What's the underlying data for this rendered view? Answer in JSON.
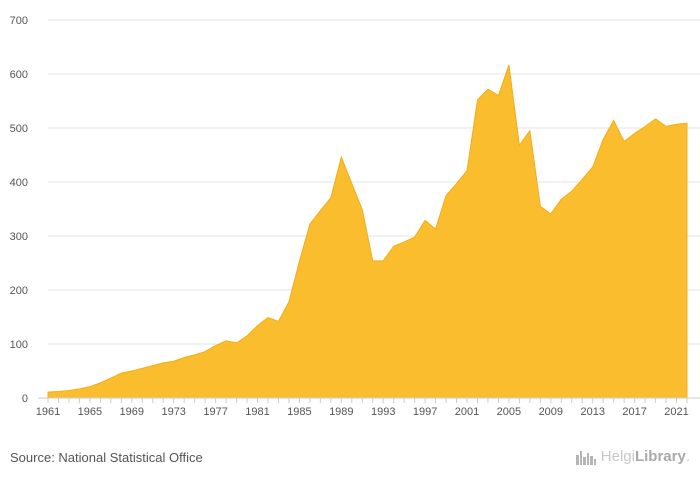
{
  "chart_data": {
    "type": "area",
    "title": "",
    "xlabel": "",
    "ylabel": "",
    "x": [
      1961,
      1962,
      1963,
      1964,
      1965,
      1966,
      1967,
      1968,
      1969,
      1970,
      1971,
      1972,
      1973,
      1974,
      1975,
      1976,
      1977,
      1978,
      1979,
      1980,
      1981,
      1982,
      1983,
      1984,
      1985,
      1986,
      1987,
      1988,
      1989,
      1990,
      1991,
      1992,
      1993,
      1994,
      1995,
      1996,
      1997,
      1998,
      1999,
      2000,
      2001,
      2002,
      2003,
      2004,
      2005,
      2006,
      2007,
      2008,
      2009,
      2010,
      2011,
      2012,
      2013,
      2014,
      2015,
      2016,
      2017,
      2018,
      2019,
      2020,
      2021,
      2022
    ],
    "values": [
      11,
      12,
      14,
      17,
      21,
      28,
      37,
      46,
      50,
      55,
      60,
      65,
      68,
      75,
      80,
      86,
      97,
      106,
      102,
      115,
      134,
      149,
      142,
      178,
      253,
      322,
      347,
      371,
      446,
      397,
      349,
      254,
      254,
      281,
      289,
      298,
      329,
      313,
      375,
      397,
      421,
      552,
      572,
      560,
      617,
      468,
      495,
      355,
      341,
      368,
      383,
      405,
      428,
      479,
      514,
      475,
      490,
      503,
      517,
      503,
      507,
      509
    ],
    "ylim": [
      0,
      700
    ],
    "yticks": [
      0,
      100,
      200,
      300,
      400,
      500,
      600,
      700
    ],
    "xticks": [
      1961,
      1965,
      1969,
      1973,
      1977,
      1981,
      1985,
      1989,
      1993,
      1997,
      2001,
      2005,
      2009,
      2013,
      2017,
      2021
    ],
    "grid": true,
    "fill_color": "#F9BD2D",
    "stroke_color": "#F2AE1A"
  },
  "footer": {
    "source": "Source: National Statistical Office",
    "brand_light": "Helgi",
    "brand_bold": "Library",
    "brand_dot": "."
  }
}
